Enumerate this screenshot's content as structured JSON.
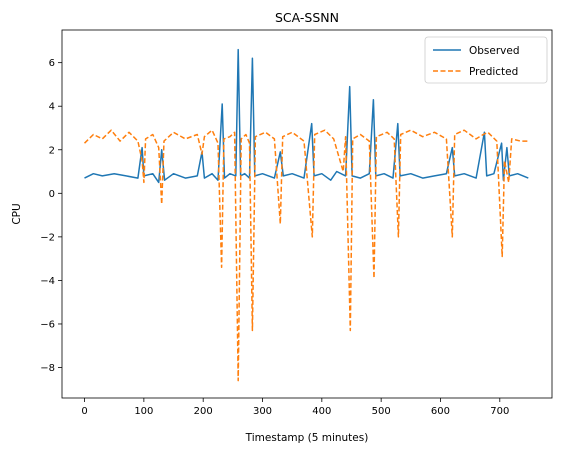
{
  "chart_data": {
    "type": "line",
    "title": "SCA-SSNN",
    "xlabel": "Timestamp (5 minutes)",
    "ylabel": "CPU",
    "xlim": [
      -38,
      788
    ],
    "ylim": [
      -9.4,
      7.5
    ],
    "xticks": [
      0,
      100,
      200,
      300,
      400,
      500,
      600,
      700
    ],
    "yticks": [
      -8,
      -6,
      -4,
      -2,
      0,
      2,
      4,
      6
    ],
    "ytick_labels": [
      "−8",
      "−6",
      "−4",
      "−2",
      "0",
      "2",
      "4",
      "6"
    ],
    "legend_position": "top-right",
    "grid": false,
    "series": [
      {
        "name": "Observed",
        "color": "#1f77b4",
        "style": "solid",
        "points": [
          [
            0,
            0.7
          ],
          [
            15,
            0.9
          ],
          [
            30,
            0.8
          ],
          [
            50,
            0.9
          ],
          [
            70,
            0.8
          ],
          [
            90,
            0.7
          ],
          [
            97,
            2.1
          ],
          [
            100,
            0.8
          ],
          [
            115,
            0.9
          ],
          [
            125,
            0.5
          ],
          [
            130,
            2.0
          ],
          [
            135,
            0.6
          ],
          [
            150,
            0.9
          ],
          [
            170,
            0.7
          ],
          [
            190,
            0.8
          ],
          [
            198,
            1.9
          ],
          [
            202,
            0.7
          ],
          [
            215,
            0.9
          ],
          [
            225,
            0.6
          ],
          [
            232,
            4.1
          ],
          [
            236,
            0.7
          ],
          [
            245,
            0.9
          ],
          [
            255,
            0.8
          ],
          [
            259,
            6.6
          ],
          [
            263,
            0.8
          ],
          [
            270,
            0.9
          ],
          [
            278,
            0.7
          ],
          [
            283,
            6.2
          ],
          [
            287,
            0.8
          ],
          [
            300,
            0.9
          ],
          [
            320,
            0.7
          ],
          [
            330,
            1.9
          ],
          [
            335,
            0.8
          ],
          [
            350,
            0.9
          ],
          [
            370,
            0.7
          ],
          [
            383,
            3.2
          ],
          [
            387,
            0.8
          ],
          [
            400,
            0.9
          ],
          [
            415,
            0.6
          ],
          [
            425,
            1.0
          ],
          [
            440,
            0.8
          ],
          [
            447,
            4.9
          ],
          [
            451,
            0.8
          ],
          [
            465,
            0.7
          ],
          [
            480,
            0.9
          ],
          [
            487,
            4.3
          ],
          [
            491,
            0.8
          ],
          [
            505,
            0.9
          ],
          [
            520,
            0.7
          ],
          [
            528,
            3.2
          ],
          [
            532,
            0.8
          ],
          [
            550,
            0.9
          ],
          [
            570,
            0.7
          ],
          [
            590,
            0.8
          ],
          [
            610,
            0.9
          ],
          [
            620,
            2.1
          ],
          [
            624,
            0.8
          ],
          [
            640,
            0.9
          ],
          [
            660,
            0.7
          ],
          [
            674,
            2.8
          ],
          [
            678,
            0.8
          ],
          [
            690,
            0.9
          ],
          [
            703,
            2.3
          ],
          [
            706,
            0.6
          ],
          [
            712,
            2.1
          ],
          [
            716,
            0.8
          ],
          [
            730,
            0.9
          ],
          [
            748,
            0.7
          ]
        ]
      },
      {
        "name": "Predicted",
        "color": "#ff7f0e",
        "style": "dashed",
        "points": [
          [
            0,
            2.3
          ],
          [
            15,
            2.7
          ],
          [
            30,
            2.5
          ],
          [
            45,
            2.9
          ],
          [
            60,
            2.4
          ],
          [
            75,
            2.8
          ],
          [
            90,
            2.4
          ],
          [
            97,
            1.5
          ],
          [
            100,
            0.5
          ],
          [
            103,
            2.5
          ],
          [
            115,
            2.7
          ],
          [
            125,
            2.1
          ],
          [
            130,
            -0.5
          ],
          [
            134,
            2.4
          ],
          [
            150,
            2.8
          ],
          [
            170,
            2.5
          ],
          [
            190,
            2.7
          ],
          [
            198,
            1.8
          ],
          [
            202,
            2.6
          ],
          [
            215,
            2.9
          ],
          [
            225,
            2.3
          ],
          [
            231,
            -3.4
          ],
          [
            235,
            2.5
          ],
          [
            245,
            2.6
          ],
          [
            253,
            2.8
          ],
          [
            259,
            -8.6
          ],
          [
            264,
            2.5
          ],
          [
            272,
            2.7
          ],
          [
            278,
            2.3
          ],
          [
            283,
            -6.3
          ],
          [
            288,
            2.6
          ],
          [
            305,
            2.8
          ],
          [
            320,
            2.5
          ],
          [
            330,
            -1.4
          ],
          [
            334,
            2.6
          ],
          [
            350,
            2.8
          ],
          [
            370,
            2.4
          ],
          [
            384,
            -2.0
          ],
          [
            388,
            2.7
          ],
          [
            405,
            2.9
          ],
          [
            420,
            2.5
          ],
          [
            436,
            1.0
          ],
          [
            440,
            2.6
          ],
          [
            448,
            -6.3
          ],
          [
            452,
            2.5
          ],
          [
            465,
            2.7
          ],
          [
            480,
            2.4
          ],
          [
            488,
            -3.9
          ],
          [
            492,
            2.6
          ],
          [
            510,
            2.8
          ],
          [
            522,
            2.5
          ],
          [
            529,
            -2.0
          ],
          [
            533,
            2.7
          ],
          [
            550,
            2.9
          ],
          [
            570,
            2.6
          ],
          [
            590,
            2.8
          ],
          [
            610,
            2.5
          ],
          [
            620,
            -2.0
          ],
          [
            624,
            2.7
          ],
          [
            640,
            2.9
          ],
          [
            660,
            2.5
          ],
          [
            672,
            2.7
          ],
          [
            680,
            2.8
          ],
          [
            695,
            2.4
          ],
          [
            704,
            -2.9
          ],
          [
            708,
            1.5
          ],
          [
            715,
            0.5
          ],
          [
            720,
            2.5
          ],
          [
            735,
            2.4
          ],
          [
            748,
            2.4
          ]
        ]
      }
    ]
  }
}
